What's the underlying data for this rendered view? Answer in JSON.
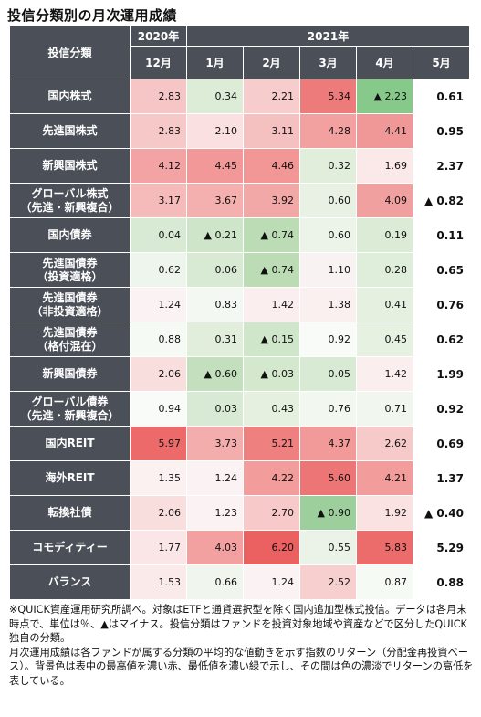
{
  "title": "投信分類別の月次運用成績",
  "header": {
    "category_label": "投信分類",
    "year_2020": "2020年",
    "year_2021": "2021年",
    "months": [
      "12月",
      "1月",
      "2月",
      "3月",
      "4月",
      "5月"
    ]
  },
  "rows": [
    {
      "label": "国内株式",
      "values": [
        "2.83",
        "0.34",
        "2.21",
        "5.34",
        "▲ 2.23",
        "0.61"
      ],
      "colors": [
        "#f6c6c6",
        "#dcecd7",
        "#f6cccc",
        "#ee7b7b",
        "#86c98b",
        "#ffffff"
      ]
    },
    {
      "label": "先進国株式",
      "values": [
        "2.83",
        "2.10",
        "3.11",
        "4.28",
        "4.41",
        "0.95"
      ],
      "colors": [
        "#f6c8c8",
        "#fae0e0",
        "#f4c0c0",
        "#f2a0a0",
        "#f09898",
        "#ffffff"
      ]
    },
    {
      "label": "新興国株式",
      "values": [
        "4.12",
        "4.45",
        "4.46",
        "0.32",
        "1.69",
        "2.37"
      ],
      "colors": [
        "#f3a3a3",
        "#f29898",
        "#f29696",
        "#e2eedc",
        "#fbe8e8",
        "#ffffff"
      ]
    },
    {
      "label": "グローバル株式\n（先進・新興複合）",
      "values": [
        "3.17",
        "3.67",
        "3.92",
        "0.60",
        "4.09",
        "▲ 0.82"
      ],
      "colors": [
        "#f5baba",
        "#f4afaf",
        "#f3a8a8",
        "#e8f1e4",
        "#f1a0a0",
        "#ffffff"
      ]
    },
    {
      "label": "国内債券",
      "values": [
        "0.04",
        "▲ 0.21",
        "▲ 0.74",
        "0.60",
        "0.19",
        "0.11"
      ],
      "colors": [
        "#d8ead3",
        "#cfe5ca",
        "#bcdcb6",
        "#ecf4e9",
        "#dbebd6",
        "#ffffff"
      ]
    },
    {
      "label": "先進国債券\n（投資適格）",
      "values": [
        "0.62",
        "0.06",
        "▲ 0.74",
        "1.10",
        "0.28",
        "0.65"
      ],
      "colors": [
        "#eef5ec",
        "#d9ead4",
        "#bcdcb6",
        "#f8f2f2",
        "#dfeeda",
        "#ffffff"
      ]
    },
    {
      "label": "先進国債券\n（非投資適格）",
      "values": [
        "1.24",
        "0.83",
        "1.42",
        "1.38",
        "0.41",
        "0.76"
      ],
      "colors": [
        "#fbf3f3",
        "#f4f8f2",
        "#fbeeee",
        "#fbf0f0",
        "#e5f0e0",
        "#ffffff"
      ]
    },
    {
      "label": "先進国債券\n（格付混在）",
      "values": [
        "0.88",
        "0.31",
        "▲ 0.15",
        "0.92",
        "0.45",
        "0.62"
      ],
      "colors": [
        "#f6faf4",
        "#e1eedc",
        "#d0e6ca",
        "#f8fbf7",
        "#e6f1e2",
        "#ffffff"
      ]
    },
    {
      "label": "新興国債券",
      "values": [
        "2.06",
        "▲ 0.60",
        "▲ 0.03",
        "0.05",
        "1.42",
        "1.99"
      ],
      "colors": [
        "#f9dede",
        "#c3dfbd",
        "#d4e8ce",
        "#d8ead3",
        "#fbeeee",
        "#ffffff"
      ]
    },
    {
      "label": "グローバル債券\n（先進・新興複合）",
      "values": [
        "0.94",
        "0.03",
        "0.43",
        "0.76",
        "0.71",
        "0.92"
      ],
      "colors": [
        "#f9fbf8",
        "#d8ead3",
        "#e5f0e0",
        "#f2f7f0",
        "#f1f6ee",
        "#ffffff"
      ]
    },
    {
      "label": "国内REIT",
      "values": [
        "5.97",
        "3.73",
        "5.21",
        "4.37",
        "2.62",
        "0.69"
      ],
      "colors": [
        "#ec6a6a",
        "#f4adad",
        "#ef8080",
        "#f29a9a",
        "#f7caca",
        "#ffffff"
      ]
    },
    {
      "label": "海外REIT",
      "values": [
        "1.35",
        "1.24",
        "4.22",
        "5.60",
        "4.21",
        "1.37"
      ],
      "colors": [
        "#fbf1f1",
        "#fbf3f3",
        "#f29c9c",
        "#ed7575",
        "#f29c9c",
        "#ffffff"
      ]
    },
    {
      "label": "転換社債",
      "values": [
        "2.06",
        "1.23",
        "2.70",
        "▲ 0.90",
        "1.92",
        "▲ 0.40"
      ],
      "colors": [
        "#f9dede",
        "#fbf3f3",
        "#f7c9c9",
        "#9ccf9c",
        "#fae2e2",
        "#ffffff"
      ]
    },
    {
      "label": "コモディティー",
      "values": [
        "1.77",
        "4.03",
        "6.20",
        "0.55",
        "5.83",
        "5.29"
      ],
      "colors": [
        "#fae6e6",
        "#f2a0a0",
        "#eb6060",
        "#ebf3e8",
        "#ec6b6b",
        "#ffffff"
      ]
    },
    {
      "label": "バランス",
      "values": [
        "1.53",
        "0.66",
        "1.24",
        "2.52",
        "0.87",
        "0.88"
      ],
      "colors": [
        "#fbeaea",
        "#f0f6ee",
        "#fbf3f3",
        "#f7cfcf",
        "#f6faf4",
        "#ffffff"
      ]
    }
  ],
  "note": "※QUICK資産運用研究所調べ。対象はETFと通貨選択型を除く国内追加型株式投信。データは各月末時点で、単位は％、▲はマイナス。投信分類はファンドを投資対象地域や資産などで区分したQUICK独自の分類。\n月次運用成績は各ファンドが属する分類の平均的な値動きを示す指数のリターン（分配金再投資ベース）。背景色は表中の最高値を濃い赤、最低値を濃い緑で示し、その間は色の濃淡でリターンの高低を表している。"
}
